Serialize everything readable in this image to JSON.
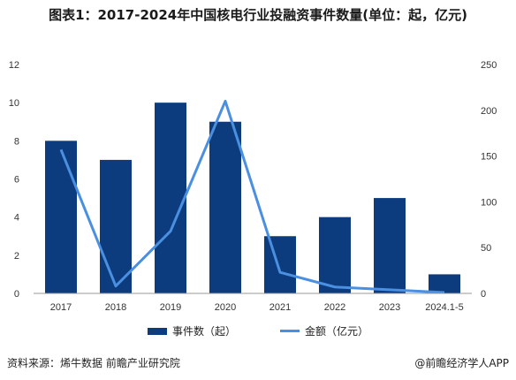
{
  "title": "图表1：2017-2024年中国核电行业投融资事件数量(单位：起，亿元)",
  "footer": {
    "source": "资料来源：烯牛数据 前瞻产业研究院",
    "brand": "@前瞻经济学人APP"
  },
  "colors": {
    "bar": "#0c3c7e",
    "line": "#4a8fe0",
    "axis": "#888888",
    "text": "#333333"
  },
  "chart_data": {
    "type": "bar",
    "categories": [
      "2017",
      "2018",
      "2019",
      "2020",
      "2021",
      "2022",
      "2023",
      "2024.1-5"
    ],
    "series": [
      {
        "name": "事件数（起）",
        "type": "bar",
        "axis": "left",
        "values": [
          8,
          7,
          10,
          9,
          3,
          4,
          5,
          1
        ]
      },
      {
        "name": "金额（亿元）",
        "type": "line",
        "axis": "right",
        "values": [
          157,
          8,
          68,
          210,
          23,
          7,
          4,
          1
        ]
      }
    ],
    "y_left": {
      "min": 0,
      "max": 12,
      "ticks": [
        0,
        2,
        4,
        6,
        8,
        10,
        12
      ]
    },
    "y_right": {
      "min": 0,
      "max": 250,
      "ticks": [
        0,
        50,
        100,
        150,
        200,
        250
      ]
    },
    "grid": false,
    "legend": "bottom"
  }
}
